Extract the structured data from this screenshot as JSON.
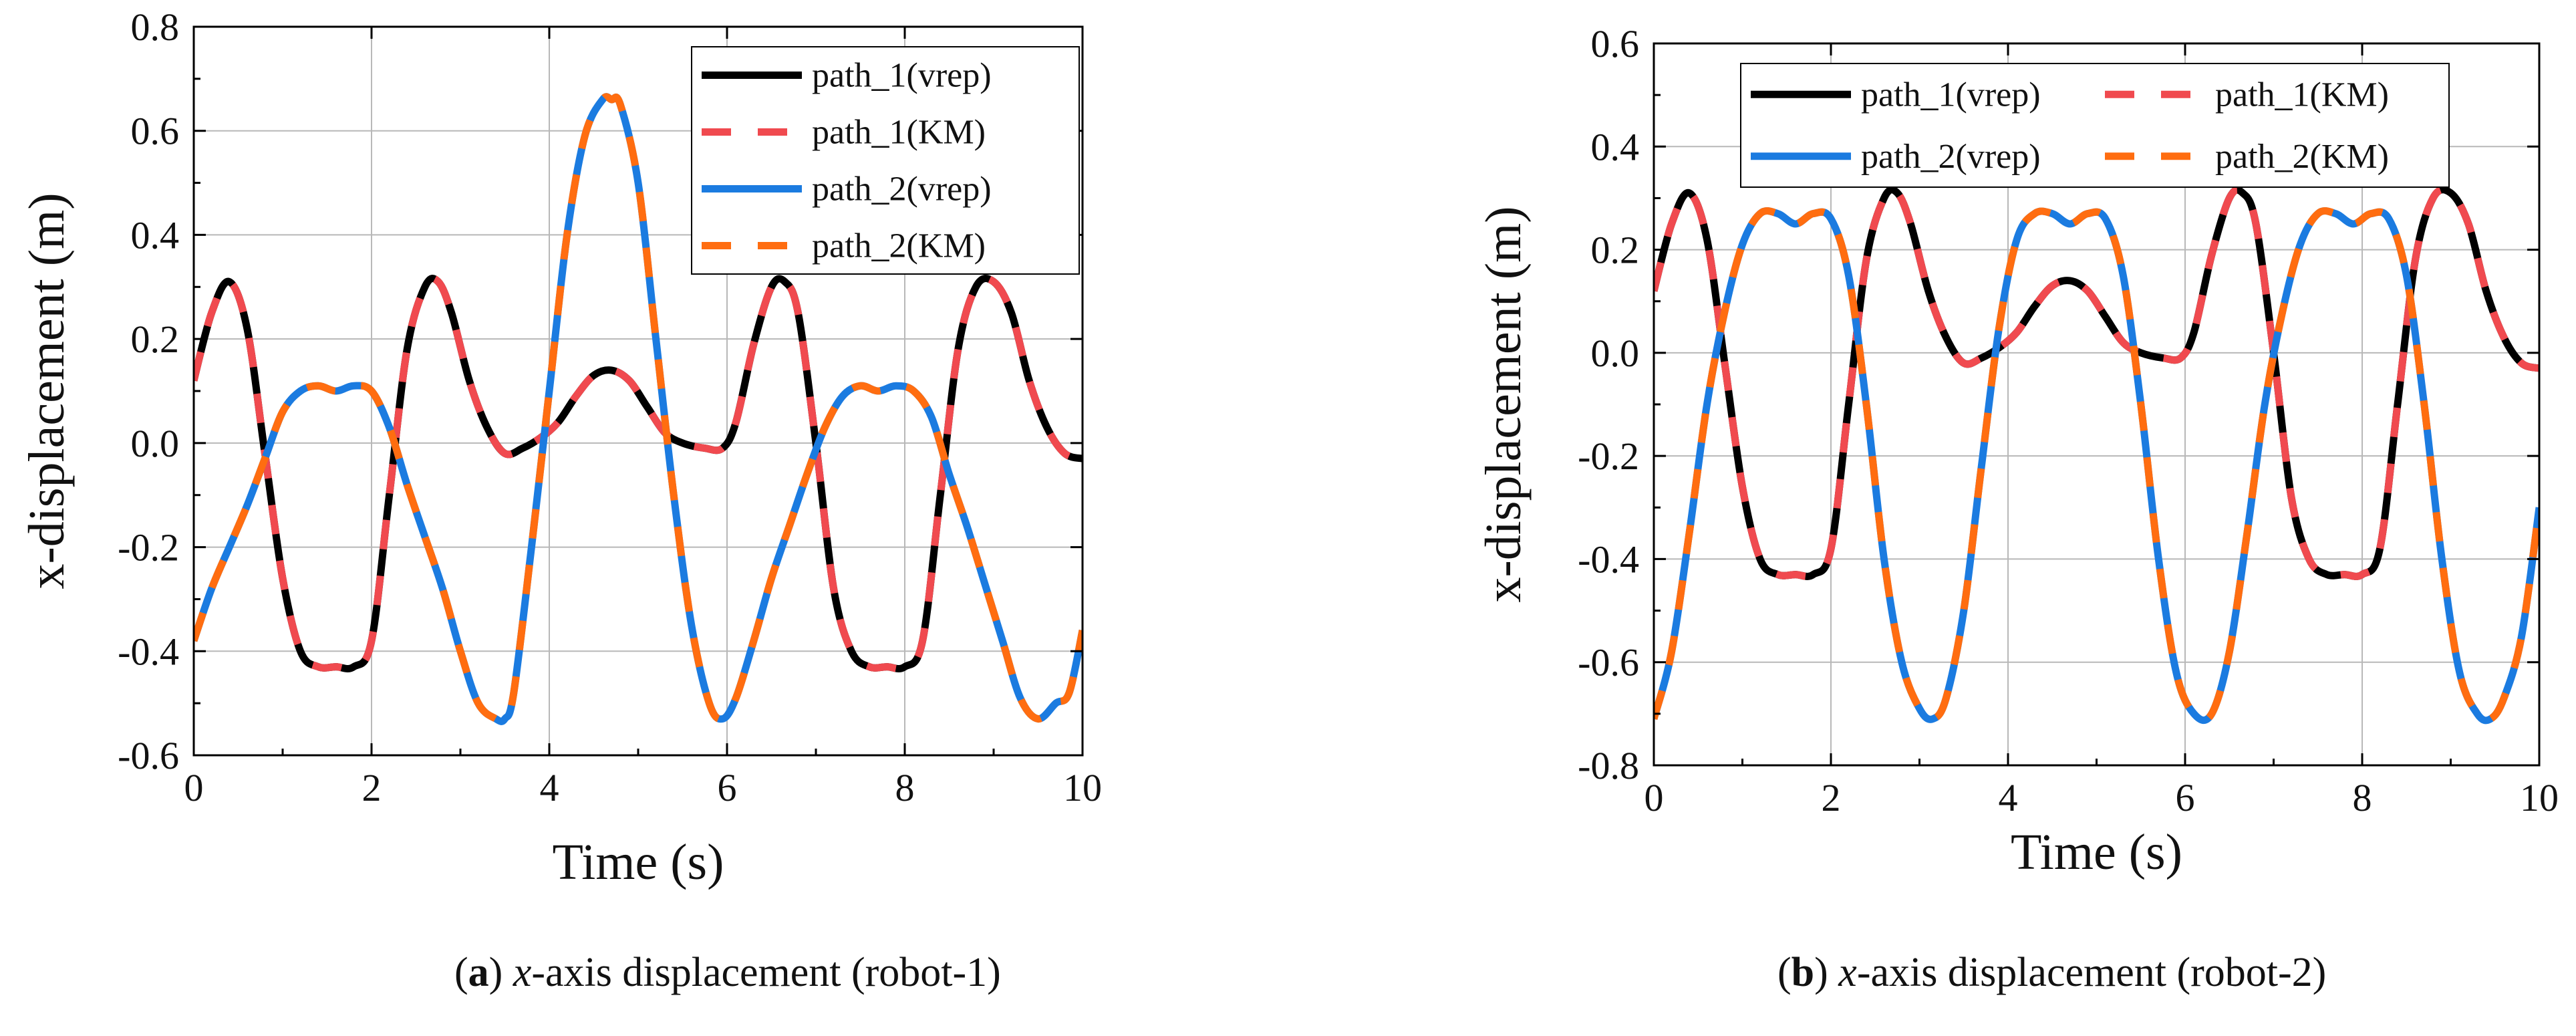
{
  "colors": {
    "path_1_vrep": "#000000",
    "path_1_KM": "#f04a4f",
    "path_2_vrep": "#1b7be0",
    "path_2_KM": "#ff6d10",
    "grid": "#b8b8b8",
    "frame": "#000000"
  },
  "captions": [
    {
      "letter": "a",
      "var": "x",
      "text": "-axis displacement (robot-1)"
    },
    {
      "letter": "b",
      "var": "x",
      "text": "-axis displacement (robot-2)"
    }
  ],
  "chart_data": [
    {
      "type": "line",
      "panel": "a",
      "xlabel": "Time (s)",
      "ylabel": "x-displacement (m)",
      "xlim": [
        0,
        10
      ],
      "ylim": [
        -0.6,
        0.8
      ],
      "xticks": [
        0,
        2,
        4,
        6,
        8,
        10
      ],
      "yticks": [
        -0.6,
        -0.4,
        -0.2,
        0.0,
        0.2,
        0.4,
        0.6,
        0.8
      ],
      "ytick_labels": [
        "-0.6",
        "-0.4",
        "-0.2",
        "0.0",
        "0.2",
        "0.4",
        "0.6",
        "0.8"
      ],
      "grid": true,
      "legend_position": "top-right",
      "legend_layout": "single-column",
      "legend": [
        "path_1(vrep)",
        "path_1(KM)",
        "path_2(vrep)",
        "path_2(KM)"
      ],
      "series": [
        {
          "name": "path_1(vrep)",
          "style": "solid",
          "color_key": "path_1_vrep",
          "x": [
            0,
            0.2,
            0.4,
            0.6,
            0.8,
            1.0,
            1.2,
            1.4,
            1.6,
            1.8,
            2.0,
            2.2,
            2.4,
            2.6,
            2.75,
            2.9,
            3.1,
            3.3,
            3.5,
            3.7,
            3.9,
            4.1,
            4.3,
            4.5,
            4.7,
            4.9,
            5.1,
            5.3,
            5.5,
            5.75,
            5.95,
            6.1,
            6.3,
            6.5,
            6.65,
            6.8,
            7.0,
            7.2,
            7.4,
            7.6,
            7.8,
            8.0,
            8.2,
            8.4,
            8.6,
            8.8,
            9.0,
            9.2,
            9.4,
            9.6,
            9.8,
            10.0
          ],
          "y": [
            0.12,
            0.25,
            0.31,
            0.22,
            -0.02,
            -0.26,
            -0.4,
            -0.43,
            -0.43,
            -0.43,
            -0.38,
            -0.1,
            0.18,
            0.3,
            0.31,
            0.25,
            0.12,
            0.03,
            -0.02,
            -0.01,
            0.01,
            0.04,
            0.09,
            0.13,
            0.14,
            0.12,
            0.07,
            0.02,
            0.0,
            -0.01,
            -0.01,
            0.04,
            0.19,
            0.3,
            0.31,
            0.25,
            0.0,
            -0.28,
            -0.4,
            -0.43,
            -0.43,
            -0.43,
            -0.38,
            -0.1,
            0.18,
            0.3,
            0.31,
            0.25,
            0.12,
            0.03,
            -0.02,
            -0.03
          ]
        },
        {
          "name": "path_1(KM)",
          "style": "dashed",
          "color_key": "path_1_KM",
          "x": [
            0,
            0.2,
            0.4,
            0.6,
            0.8,
            1.0,
            1.2,
            1.4,
            1.6,
            1.8,
            2.0,
            2.2,
            2.4,
            2.6,
            2.75,
            2.9,
            3.1,
            3.3,
            3.5,
            3.7,
            3.9,
            4.1,
            4.3,
            4.5,
            4.7,
            4.9,
            5.1,
            5.3,
            5.5,
            5.75,
            5.95,
            6.1,
            6.3,
            6.5,
            6.65,
            6.8,
            7.0,
            7.2,
            7.4,
            7.6,
            7.8,
            8.0,
            8.2,
            8.4,
            8.6,
            8.8,
            9.0,
            9.2,
            9.4,
            9.6,
            9.8,
            10.0
          ],
          "y": [
            0.12,
            0.25,
            0.31,
            0.22,
            -0.02,
            -0.26,
            -0.4,
            -0.43,
            -0.43,
            -0.43,
            -0.38,
            -0.1,
            0.18,
            0.3,
            0.31,
            0.25,
            0.12,
            0.03,
            -0.02,
            -0.01,
            0.01,
            0.04,
            0.09,
            0.13,
            0.14,
            0.12,
            0.07,
            0.02,
            0.0,
            -0.01,
            -0.01,
            0.04,
            0.19,
            0.3,
            0.31,
            0.25,
            0.0,
            -0.28,
            -0.4,
            -0.43,
            -0.43,
            -0.43,
            -0.38,
            -0.1,
            0.18,
            0.3,
            0.31,
            0.25,
            0.12,
            0.03,
            -0.02,
            -0.03
          ]
        },
        {
          "name": "path_2(vrep)",
          "style": "solid",
          "color_key": "path_2_vrep",
          "x": [
            0,
            0.2,
            0.4,
            0.6,
            0.8,
            1.0,
            1.2,
            1.4,
            1.6,
            1.8,
            2.0,
            2.2,
            2.4,
            2.6,
            2.8,
            3.0,
            3.2,
            3.4,
            3.5,
            3.6,
            3.8,
            4.0,
            4.2,
            4.4,
            4.6,
            4.7,
            4.8,
            5.0,
            5.2,
            5.4,
            5.6,
            5.8,
            5.95,
            6.1,
            6.3,
            6.5,
            6.7,
            6.9,
            7.1,
            7.3,
            7.5,
            7.7,
            7.9,
            8.1,
            8.3,
            8.5,
            8.7,
            8.9,
            9.1,
            9.3,
            9.5,
            9.7,
            9.85,
            10.0
          ],
          "y": [
            -0.38,
            -0.28,
            -0.2,
            -0.12,
            -0.03,
            0.06,
            0.1,
            0.11,
            0.1,
            0.11,
            0.1,
            0.03,
            -0.08,
            -0.18,
            -0.28,
            -0.4,
            -0.5,
            -0.53,
            -0.53,
            -0.48,
            -0.2,
            0.1,
            0.4,
            0.59,
            0.66,
            0.66,
            0.65,
            0.5,
            0.2,
            -0.1,
            -0.35,
            -0.5,
            -0.53,
            -0.49,
            -0.38,
            -0.26,
            -0.16,
            -0.06,
            0.03,
            0.09,
            0.11,
            0.1,
            0.11,
            0.1,
            0.05,
            -0.06,
            -0.16,
            -0.27,
            -0.38,
            -0.49,
            -0.53,
            -0.5,
            -0.48,
            -0.36
          ]
        },
        {
          "name": "path_2(KM)",
          "style": "dashed",
          "color_key": "path_2_KM",
          "x": [
            0,
            0.2,
            0.4,
            0.6,
            0.8,
            1.0,
            1.2,
            1.4,
            1.6,
            1.8,
            2.0,
            2.2,
            2.4,
            2.6,
            2.8,
            3.0,
            3.2,
            3.4,
            3.5,
            3.6,
            3.8,
            4.0,
            4.2,
            4.4,
            4.6,
            4.7,
            4.8,
            5.0,
            5.2,
            5.4,
            5.6,
            5.8,
            5.95,
            6.1,
            6.3,
            6.5,
            6.7,
            6.9,
            7.1,
            7.3,
            7.5,
            7.7,
            7.9,
            8.1,
            8.3,
            8.5,
            8.7,
            8.9,
            9.1,
            9.3,
            9.5,
            9.7,
            9.85,
            10.0
          ],
          "y": [
            -0.38,
            -0.28,
            -0.2,
            -0.12,
            -0.03,
            0.06,
            0.1,
            0.11,
            0.1,
            0.11,
            0.1,
            0.03,
            -0.08,
            -0.18,
            -0.28,
            -0.4,
            -0.5,
            -0.53,
            -0.53,
            -0.48,
            -0.2,
            0.1,
            0.4,
            0.59,
            0.66,
            0.66,
            0.65,
            0.5,
            0.2,
            -0.1,
            -0.35,
            -0.5,
            -0.53,
            -0.49,
            -0.38,
            -0.26,
            -0.16,
            -0.06,
            0.03,
            0.09,
            0.11,
            0.1,
            0.11,
            0.1,
            0.05,
            -0.06,
            -0.16,
            -0.27,
            -0.38,
            -0.49,
            -0.53,
            -0.5,
            -0.48,
            -0.36
          ]
        }
      ]
    },
    {
      "type": "line",
      "panel": "b",
      "xlabel": "Time (s)",
      "ylabel": "x-displacement (m)",
      "xlim": [
        0,
        10
      ],
      "ylim": [
        -0.8,
        0.6
      ],
      "xticks": [
        0,
        2,
        4,
        6,
        8,
        10
      ],
      "yticks": [
        -0.8,
        -0.6,
        -0.4,
        -0.2,
        0.0,
        0.2,
        0.4,
        0.6
      ],
      "ytick_labels": [
        "-0.8",
        "-0.6",
        "-0.4",
        "-0.2",
        "0.0",
        "0.2",
        "0.4",
        "0.6"
      ],
      "grid": true,
      "legend_position": "top",
      "legend_layout": "two-column",
      "legend": [
        "path_1(vrep)",
        "path_1(KM)",
        "path_2(vrep)",
        "path_2(KM)"
      ],
      "series": [
        {
          "name": "path_1(vrep)",
          "style": "solid",
          "color_key": "path_1_vrep",
          "x": [
            0,
            0.2,
            0.4,
            0.6,
            0.8,
            1.0,
            1.2,
            1.4,
            1.6,
            1.8,
            2.0,
            2.2,
            2.4,
            2.6,
            2.75,
            2.9,
            3.1,
            3.3,
            3.5,
            3.7,
            3.9,
            4.1,
            4.3,
            4.5,
            4.7,
            4.9,
            5.1,
            5.3,
            5.5,
            5.75,
            5.95,
            6.1,
            6.3,
            6.5,
            6.65,
            6.8,
            7.0,
            7.2,
            7.4,
            7.6,
            7.8,
            8.0,
            8.2,
            8.4,
            8.6,
            8.8,
            9.0,
            9.2,
            9.4,
            9.6,
            9.8,
            10.0
          ],
          "y": [
            0.12,
            0.25,
            0.31,
            0.22,
            -0.02,
            -0.26,
            -0.4,
            -0.43,
            -0.43,
            -0.43,
            -0.38,
            -0.1,
            0.18,
            0.3,
            0.31,
            0.25,
            0.12,
            0.03,
            -0.02,
            -0.01,
            0.01,
            0.04,
            0.09,
            0.13,
            0.14,
            0.12,
            0.07,
            0.02,
            0.0,
            -0.01,
            -0.01,
            0.04,
            0.19,
            0.3,
            0.31,
            0.25,
            0.0,
            -0.28,
            -0.4,
            -0.43,
            -0.43,
            -0.43,
            -0.38,
            -0.1,
            0.18,
            0.3,
            0.31,
            0.25,
            0.12,
            0.03,
            -0.02,
            -0.03
          ]
        },
        {
          "name": "path_1(KM)",
          "style": "dashed",
          "color_key": "path_1_KM",
          "x": [
            0,
            0.2,
            0.4,
            0.6,
            0.8,
            1.0,
            1.2,
            1.4,
            1.6,
            1.8,
            2.0,
            2.2,
            2.4,
            2.6,
            2.75,
            2.9,
            3.1,
            3.3,
            3.5,
            3.7,
            3.9,
            4.1,
            4.3,
            4.5,
            4.7,
            4.9,
            5.1,
            5.3,
            5.5,
            5.75,
            5.95,
            6.1,
            6.3,
            6.5,
            6.65,
            6.8,
            7.0,
            7.2,
            7.4,
            7.6,
            7.8,
            8.0,
            8.2,
            8.4,
            8.6,
            8.8,
            9.0,
            9.2,
            9.4,
            9.6,
            9.8,
            10.0
          ],
          "y": [
            0.12,
            0.25,
            0.31,
            0.22,
            -0.02,
            -0.26,
            -0.4,
            -0.43,
            -0.43,
            -0.43,
            -0.38,
            -0.1,
            0.18,
            0.3,
            0.31,
            0.25,
            0.12,
            0.03,
            -0.02,
            -0.01,
            0.01,
            0.04,
            0.09,
            0.13,
            0.14,
            0.12,
            0.07,
            0.02,
            0.0,
            -0.01,
            -0.01,
            0.04,
            0.19,
            0.3,
            0.31,
            0.25,
            0.0,
            -0.28,
            -0.4,
            -0.43,
            -0.43,
            -0.43,
            -0.38,
            -0.1,
            0.18,
            0.3,
            0.31,
            0.25,
            0.12,
            0.03,
            -0.02,
            -0.03
          ]
        },
        {
          "name": "path_2(vrep)",
          "style": "solid",
          "color_key": "path_2_vrep",
          "x": [
            0,
            0.2,
            0.4,
            0.6,
            0.8,
            1.0,
            1.2,
            1.4,
            1.6,
            1.8,
            2.0,
            2.2,
            2.4,
            2.6,
            2.8,
            3.0,
            3.15,
            3.3,
            3.5,
            3.7,
            3.9,
            4.1,
            4.3,
            4.5,
            4.7,
            4.9,
            5.1,
            5.3,
            5.5,
            5.7,
            5.9,
            6.1,
            6.3,
            6.5,
            6.7,
            6.9,
            7.1,
            7.3,
            7.5,
            7.7,
            7.9,
            8.1,
            8.3,
            8.5,
            8.7,
            8.9,
            9.1,
            9.3,
            9.45,
            9.6,
            9.8,
            10.0
          ],
          "y": [
            -0.71,
            -0.58,
            -0.35,
            -0.1,
            0.08,
            0.21,
            0.27,
            0.27,
            0.25,
            0.27,
            0.26,
            0.15,
            -0.1,
            -0.4,
            -0.6,
            -0.69,
            -0.71,
            -0.67,
            -0.5,
            -0.22,
            0.05,
            0.22,
            0.27,
            0.27,
            0.25,
            0.27,
            0.26,
            0.15,
            -0.1,
            -0.4,
            -0.62,
            -0.7,
            -0.7,
            -0.58,
            -0.35,
            -0.1,
            0.08,
            0.21,
            0.27,
            0.27,
            0.25,
            0.27,
            0.26,
            0.15,
            -0.1,
            -0.4,
            -0.62,
            -0.7,
            -0.71,
            -0.67,
            -0.55,
            -0.3
          ]
        },
        {
          "name": "path_2(KM)",
          "style": "dashed",
          "color_key": "path_2_KM",
          "x": [
            0,
            0.2,
            0.4,
            0.6,
            0.8,
            1.0,
            1.2,
            1.4,
            1.6,
            1.8,
            2.0,
            2.2,
            2.4,
            2.6,
            2.8,
            3.0,
            3.15,
            3.3,
            3.5,
            3.7,
            3.9,
            4.1,
            4.3,
            4.5,
            4.7,
            4.9,
            5.1,
            5.3,
            5.5,
            5.7,
            5.9,
            6.1,
            6.3,
            6.5,
            6.7,
            6.9,
            7.1,
            7.3,
            7.5,
            7.7,
            7.9,
            8.1,
            8.3,
            8.5,
            8.7,
            8.9,
            9.1,
            9.3,
            9.45,
            9.6,
            9.8,
            10.0
          ],
          "y": [
            -0.71,
            -0.58,
            -0.35,
            -0.1,
            0.08,
            0.21,
            0.27,
            0.27,
            0.25,
            0.27,
            0.26,
            0.15,
            -0.1,
            -0.4,
            -0.6,
            -0.69,
            -0.71,
            -0.67,
            -0.5,
            -0.22,
            0.05,
            0.22,
            0.27,
            0.27,
            0.25,
            0.27,
            0.26,
            0.15,
            -0.1,
            -0.4,
            -0.62,
            -0.7,
            -0.7,
            -0.58,
            -0.35,
            -0.1,
            0.08,
            0.21,
            0.27,
            0.27,
            0.25,
            0.27,
            0.26,
            0.15,
            -0.1,
            -0.4,
            -0.62,
            -0.7,
            -0.71,
            -0.67,
            -0.55,
            -0.3
          ]
        }
      ]
    }
  ]
}
